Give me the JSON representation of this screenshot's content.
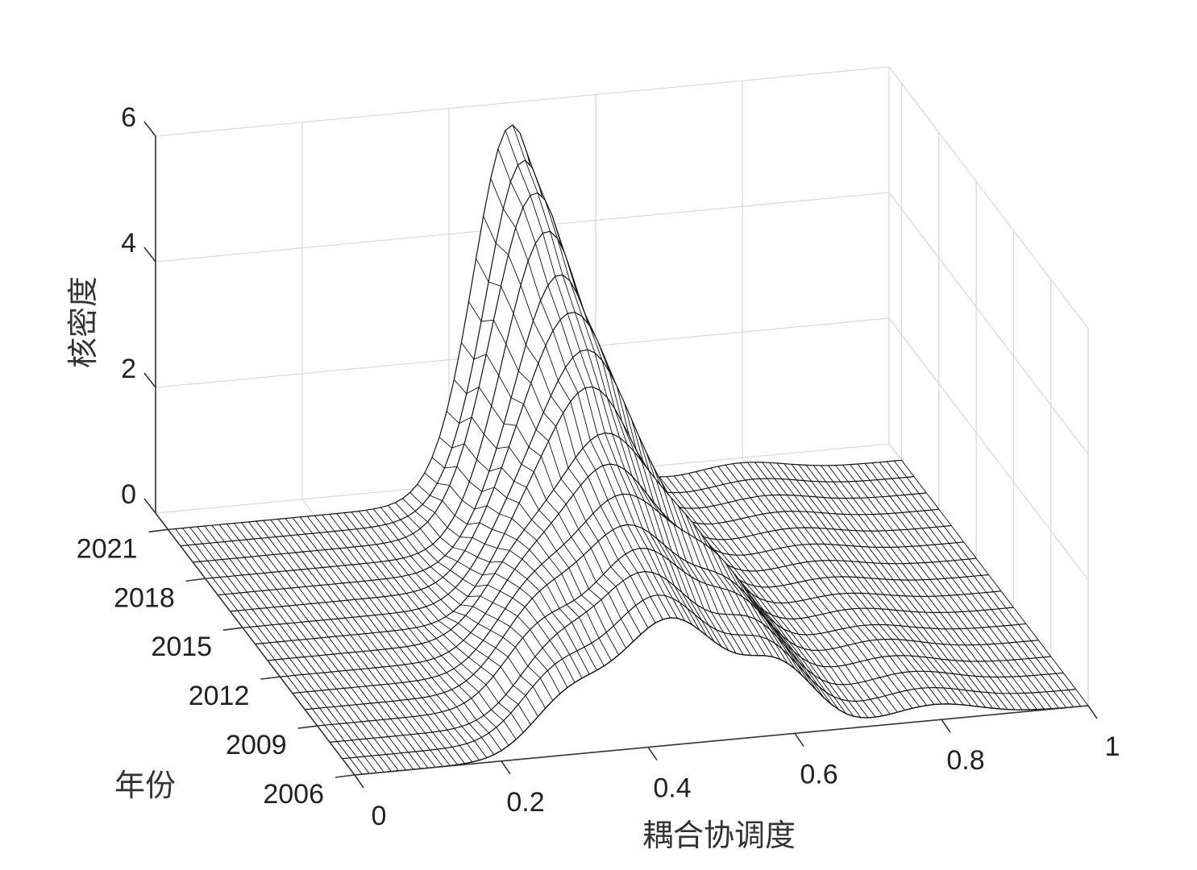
{
  "chart_data": {
    "type": "surface",
    "xlabel": "耦合协调度",
    "ylabel": "年份",
    "zlabel": "核密度",
    "xlim": [
      0,
      1
    ],
    "ylim": [
      2006,
      2022
    ],
    "zlim": [
      0,
      6
    ],
    "x_ticks": [
      "0",
      "0.2",
      "0.4",
      "0.6",
      "0.8",
      "1"
    ],
    "y_ticks": [
      "2006",
      "2009",
      "2012",
      "2015",
      "2018",
      "2021"
    ],
    "z_ticks": [
      "0",
      "2",
      "4",
      "6"
    ],
    "grid": true,
    "colors": {
      "mesh_edge": "#111111",
      "face": "#ffffff",
      "grid": "#d9d9d9",
      "axis": "#333333"
    },
    "years": [
      2006,
      2007,
      2008,
      2009,
      2010,
      2011,
      2012,
      2013,
      2014,
      2015,
      2016,
      2017,
      2018,
      2019,
      2020,
      2021
    ],
    "peaks_note_units": "kernel density components per year: [center, height, width]",
    "series": [
      {
        "year": 2006,
        "components": [
          [
            0.43,
            2.0,
            0.07
          ],
          [
            0.29,
            0.8,
            0.05
          ],
          [
            0.58,
            1.0,
            0.05
          ],
          [
            0.79,
            0.25,
            0.06
          ]
        ]
      },
      {
        "year": 2007,
        "components": [
          [
            0.43,
            2.1,
            0.07
          ],
          [
            0.29,
            0.9,
            0.05
          ],
          [
            0.58,
            1.05,
            0.05
          ],
          [
            0.79,
            0.25,
            0.06
          ]
        ]
      },
      {
        "year": 2008,
        "components": [
          [
            0.43,
            2.2,
            0.07
          ],
          [
            0.3,
            0.9,
            0.05
          ],
          [
            0.58,
            1.1,
            0.05
          ],
          [
            0.79,
            0.25,
            0.06
          ]
        ]
      },
      {
        "year": 2009,
        "components": [
          [
            0.44,
            2.3,
            0.07
          ],
          [
            0.3,
            1.0,
            0.05
          ],
          [
            0.58,
            1.1,
            0.05
          ],
          [
            0.78,
            0.25,
            0.06
          ]
        ]
      },
      {
        "year": 2010,
        "components": [
          [
            0.44,
            2.4,
            0.07
          ],
          [
            0.31,
            1.0,
            0.05
          ],
          [
            0.58,
            1.1,
            0.05
          ],
          [
            0.78,
            0.25,
            0.06
          ]
        ]
      },
      {
        "year": 2011,
        "components": [
          [
            0.45,
            2.6,
            0.07
          ],
          [
            0.32,
            1.0,
            0.05
          ],
          [
            0.58,
            1.1,
            0.05
          ],
          [
            0.78,
            0.22,
            0.06
          ]
        ]
      },
      {
        "year": 2012,
        "components": [
          [
            0.45,
            2.8,
            0.065
          ],
          [
            0.33,
            1.0,
            0.05
          ],
          [
            0.58,
            1.0,
            0.05
          ],
          [
            0.78,
            0.22,
            0.06
          ]
        ]
      },
      {
        "year": 2013,
        "components": [
          [
            0.46,
            3.0,
            0.065
          ],
          [
            0.34,
            1.0,
            0.05
          ],
          [
            0.58,
            1.0,
            0.05
          ],
          [
            0.78,
            0.2,
            0.06
          ]
        ]
      },
      {
        "year": 2014,
        "components": [
          [
            0.46,
            3.4,
            0.06
          ],
          [
            0.36,
            1.0,
            0.05
          ],
          [
            0.58,
            0.9,
            0.05
          ],
          [
            0.78,
            0.2,
            0.06
          ]
        ]
      },
      {
        "year": 2015,
        "components": [
          [
            0.47,
            3.7,
            0.06
          ],
          [
            0.37,
            1.0,
            0.05
          ],
          [
            0.58,
            0.8,
            0.05
          ],
          [
            0.78,
            0.2,
            0.06
          ]
        ]
      },
      {
        "year": 2016,
        "components": [
          [
            0.47,
            4.0,
            0.06
          ],
          [
            0.38,
            0.9,
            0.05
          ],
          [
            0.58,
            0.7,
            0.05
          ],
          [
            0.78,
            0.2,
            0.06
          ]
        ]
      },
      {
        "year": 2017,
        "components": [
          [
            0.47,
            4.3,
            0.055
          ],
          [
            0.39,
            0.8,
            0.05
          ],
          [
            0.58,
            0.6,
            0.05
          ],
          [
            0.78,
            0.2,
            0.06
          ]
        ]
      },
      {
        "year": 2018,
        "components": [
          [
            0.47,
            4.7,
            0.055
          ],
          [
            0.4,
            0.7,
            0.05
          ],
          [
            0.58,
            0.5,
            0.05
          ],
          [
            0.78,
            0.2,
            0.06
          ]
        ]
      },
      {
        "year": 2019,
        "components": [
          [
            0.47,
            5.1,
            0.055
          ],
          [
            0.4,
            0.6,
            0.05
          ],
          [
            0.58,
            0.4,
            0.05
          ],
          [
            0.78,
            0.2,
            0.06
          ]
        ]
      },
      {
        "year": 2020,
        "components": [
          [
            0.47,
            5.4,
            0.05
          ],
          [
            0.4,
            0.5,
            0.05
          ],
          [
            0.58,
            0.35,
            0.05
          ],
          [
            0.78,
            0.2,
            0.06
          ]
        ]
      },
      {
        "year": 2021,
        "components": [
          [
            0.47,
            5.7,
            0.05
          ],
          [
            0.41,
            0.4,
            0.05
          ],
          [
            0.58,
            0.3,
            0.05
          ],
          [
            0.78,
            0.2,
            0.06
          ]
        ]
      }
    ]
  }
}
